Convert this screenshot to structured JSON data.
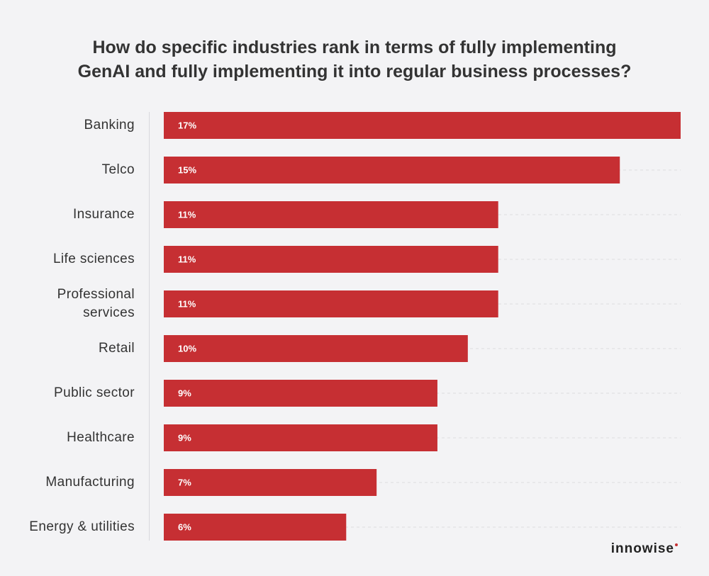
{
  "chart_data": {
    "type": "bar",
    "orientation": "horizontal",
    "title": [
      "How do specific industries rank in terms of fully implementing",
      "GenAI and fully implementing it into regular business processes?"
    ],
    "categories": [
      "Banking",
      "Telco",
      "Insurance",
      "Life sciences",
      "Professional services",
      "Retail",
      "Public sector",
      "Healthcare",
      "Manufacturing",
      "Energy & utilities"
    ],
    "values": [
      17,
      15,
      11,
      11,
      11,
      10,
      9,
      9,
      7,
      6
    ],
    "value_labels": [
      "17%",
      "15%",
      "11%",
      "11%",
      "11%",
      "10%",
      "9%",
      "9%",
      "7%",
      "6%"
    ],
    "color": "#c62f33",
    "xlim": [
      0,
      17
    ],
    "grid": true
  },
  "logo": "innowise"
}
